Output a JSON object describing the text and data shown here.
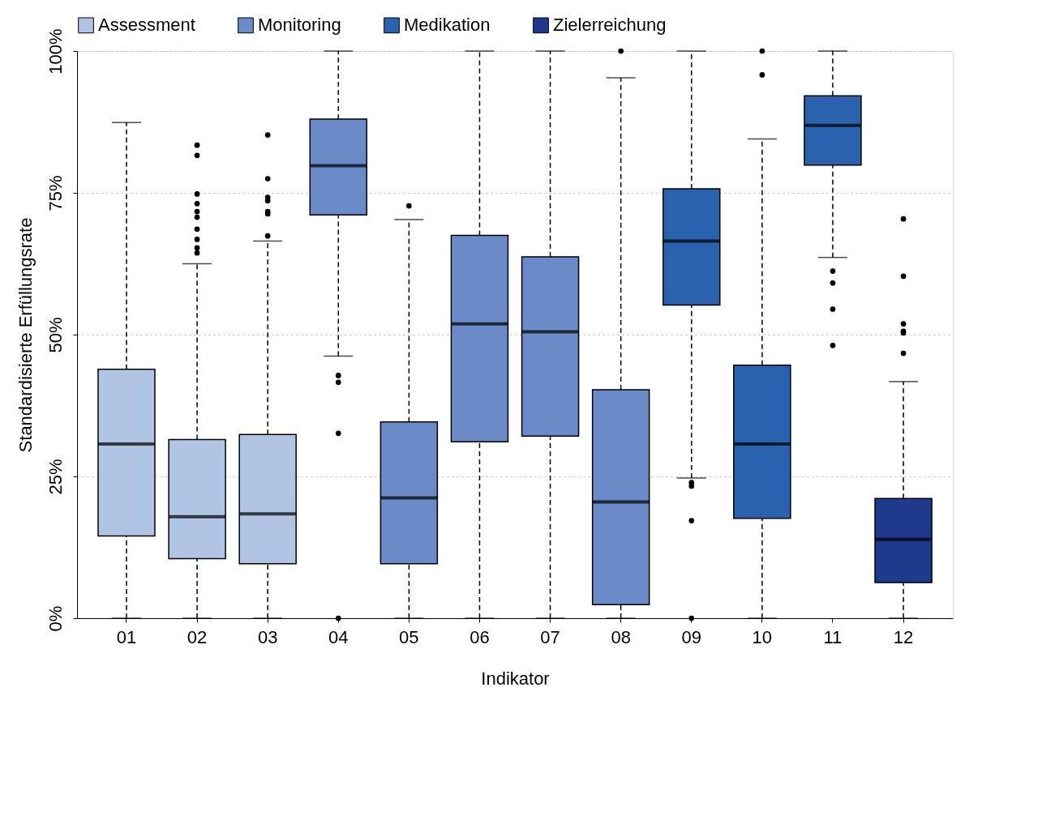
{
  "chart_data": {
    "type": "box",
    "xlabel": "Indikator",
    "ylabel": "Standardisierte Erfüllungsrate",
    "categories": [
      "01",
      "02",
      "03",
      "04",
      "05",
      "06",
      "07",
      "08",
      "09",
      "10",
      "11",
      "12"
    ],
    "ylim": [
      0,
      100
    ],
    "yticks": [
      {
        "value": 0,
        "label": "0%"
      },
      {
        "value": 25,
        "label": "25%"
      },
      {
        "value": 50,
        "label": "50%"
      },
      {
        "value": 75,
        "label": "75%"
      },
      {
        "value": 100,
        "label": "100%"
      }
    ],
    "grid": "y",
    "legend": "top",
    "series": [
      {
        "name": "Assessment",
        "color": "#b0c4e4",
        "x": [
          "01",
          "02",
          "03"
        ],
        "boxes": [
          {
            "low": 0,
            "q1": 14.5,
            "median": 30.7,
            "q3": 43.9,
            "high": 87.4
          },
          {
            "low": 0,
            "q1": 10.5,
            "median": 17.9,
            "q3": 31.5,
            "high": 62.5,
            "outliers": [
              83.4,
              81.6,
              74.8,
              73.1,
              71.7,
              70.7,
              68.6,
              66.8,
              65.3,
              64.4
            ]
          },
          {
            "low": 0,
            "q1": 9.6,
            "median": 18.4,
            "q3": 32.4,
            "high": 66.5,
            "outliers": [
              85.2,
              77.5,
              74.2,
              73.6,
              71.7,
              71.3,
              67.4
            ]
          }
        ]
      },
      {
        "name": "Monitoring",
        "color": "#6a8bc8",
        "x": [
          "04",
          "05",
          "06",
          "07",
          "08"
        ],
        "boxes": [
          {
            "low": 46.2,
            "q1": 71.1,
            "median": 79.8,
            "q3": 88.0,
            "high": 100,
            "outliers": [
              42.8,
              41.6,
              32.6,
              0
            ]
          },
          {
            "low": 0,
            "q1": 9.6,
            "median": 21.2,
            "q3": 34.6,
            "high": 70.3,
            "outliers": [
              72.7
            ]
          },
          {
            "low": 0,
            "q1": 31.1,
            "median": 51.9,
            "q3": 67.5,
            "high": 100
          },
          {
            "low": 0,
            "q1": 32.1,
            "median": 50.5,
            "q3": 63.7,
            "high": 100
          },
          {
            "low": 0,
            "q1": 2.4,
            "median": 20.5,
            "q3": 40.3,
            "high": 95.3,
            "outliers": [
              100
            ]
          }
        ]
      },
      {
        "name": "Medikation",
        "color": "#2b62ae",
        "x": [
          "09",
          "10",
          "11"
        ],
        "boxes": [
          {
            "low": 24.7,
            "q1": 55.2,
            "median": 66.5,
            "q3": 75.7,
            "high": 100,
            "outliers": [
              23.9,
              23.3,
              17.2,
              0
            ]
          },
          {
            "low": 0,
            "q1": 17.6,
            "median": 30.7,
            "q3": 44.6,
            "high": 84.5,
            "outliers": [
              100,
              95.8
            ]
          },
          {
            "low": 63.6,
            "q1": 79.9,
            "median": 86.9,
            "q3": 92.1,
            "high": 100,
            "outliers": [
              61.2,
              59.1,
              54.5,
              48.1
            ]
          }
        ]
      },
      {
        "name": "Zielerreichung",
        "color": "#1f3a8c",
        "x": [
          "12"
        ],
        "boxes": [
          {
            "low": 0,
            "q1": 6.3,
            "median": 13.9,
            "q3": 21.1,
            "high": 41.7,
            "outliers": [
              70.4,
              60.3,
              51.9,
              50.6,
              50.3,
              46.7
            ]
          }
        ]
      }
    ]
  }
}
